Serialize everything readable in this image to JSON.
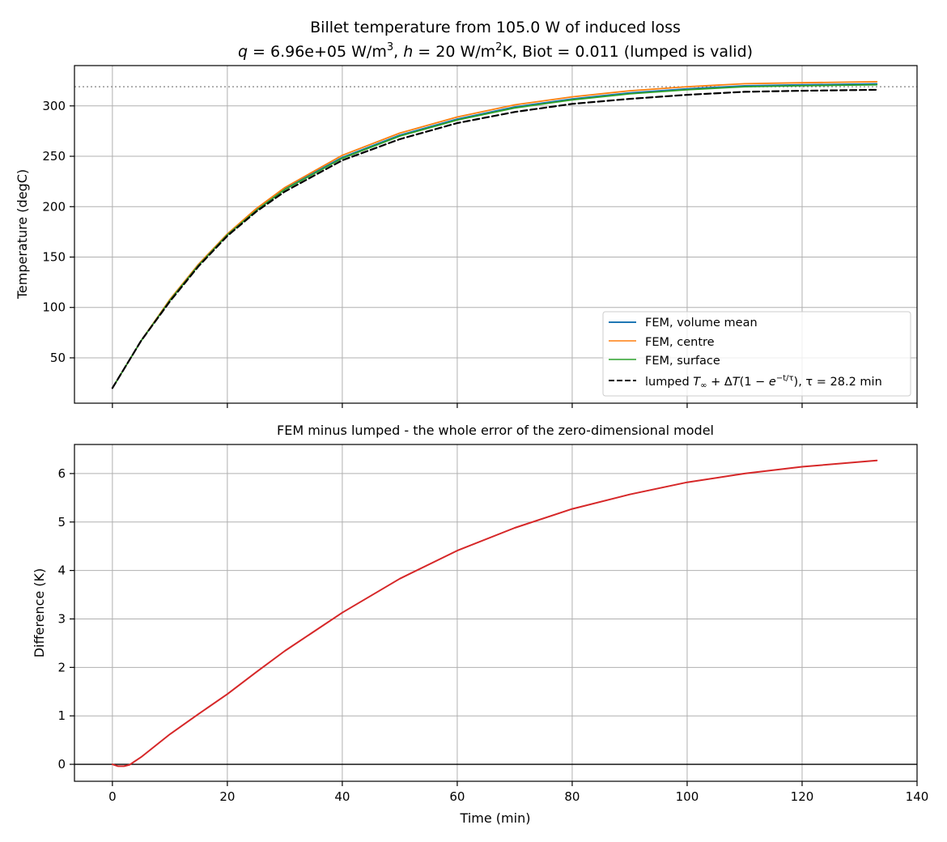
{
  "figure": {
    "title_line1": "Billet temperature from 105.0 W of induced loss",
    "title_line2": {
      "q": "q",
      "q_value": " = 6.96e+05 W/m",
      "q_exp": "3",
      "sep": ", ",
      "h": "h",
      "h_value": " = 20 W/m",
      "h_exp": "2",
      "rest": "K, Biot = 0.011 (lumped is valid)"
    }
  },
  "chart_data": [
    {
      "type": "line",
      "ylabel": "Temperature (degC)",
      "xlim": [
        -6.6,
        140
      ],
      "ylim": [
        5,
        340
      ],
      "x_ticks": [
        0,
        20,
        40,
        60,
        80,
        100,
        120,
        140
      ],
      "x_tick_labels_visible": false,
      "y_ticks": [
        50,
        100,
        150,
        200,
        250,
        300
      ],
      "y_tick_labels": [
        "50",
        "100",
        "150",
        "200",
        "250",
        "300"
      ],
      "grid": true,
      "reference_line": {
        "y": 319,
        "style": "dotted",
        "color": "#808080"
      },
      "legend": {
        "placement": "lower-right",
        "entries": [
          {
            "label": "FEM, volume mean",
            "color": "#1f77b4",
            "style": "solid"
          },
          {
            "label": "FEM, centre",
            "color": "#ff7f0e",
            "style": "solid"
          },
          {
            "label": "FEM, surface",
            "color": "#2ca02c",
            "style": "solid"
          },
          {
            "label_prefix": "lumped ",
            "label_math": "T∞ + ΔT(1 − e^(−t/τ))",
            "label_suffix": ", τ = 28.2 min",
            "color": "#000000",
            "style": "dashed"
          }
        ]
      },
      "series": [
        {
          "name": "FEM, volume mean",
          "color": "#1f77b4",
          "x": [
            0,
            5,
            10,
            15,
            20,
            25,
            30,
            40,
            50,
            60,
            70,
            80,
            90,
            100,
            110,
            120,
            133
          ],
          "y": [
            20,
            67,
            107,
            143,
            172,
            197,
            218,
            249,
            271,
            287,
            299,
            307,
            313,
            317,
            320,
            321,
            322
          ]
        },
        {
          "name": "FEM, centre",
          "color": "#ff7f0e",
          "x": [
            0,
            5,
            10,
            15,
            20,
            25,
            30,
            40,
            50,
            60,
            70,
            80,
            90,
            100,
            110,
            120,
            133
          ],
          "y": [
            20,
            67,
            108,
            143,
            173,
            198,
            219,
            251,
            273,
            289,
            301,
            309,
            315,
            319,
            322,
            323,
            324
          ]
        },
        {
          "name": "FEM, surface",
          "color": "#2ca02c",
          "x": [
            0,
            5,
            10,
            15,
            20,
            25,
            30,
            40,
            50,
            60,
            70,
            80,
            90,
            100,
            110,
            120,
            133
          ],
          "y": [
            20,
            67,
            107,
            142,
            172,
            196,
            217,
            248,
            270,
            286,
            298,
            306,
            312,
            316,
            319,
            320,
            321
          ]
        },
        {
          "name": "lumped",
          "color": "#000000",
          "x": [
            0,
            5,
            10,
            15,
            20,
            25,
            30,
            40,
            50,
            60,
            70,
            80,
            90,
            100,
            110,
            120,
            133
          ],
          "y": [
            20,
            67,
            106,
            141,
            171,
            195,
            215,
            246,
            267,
            283,
            294,
            302,
            307,
            311,
            314,
            315,
            316
          ]
        }
      ]
    },
    {
      "type": "line",
      "title": "FEM minus lumped - the whole error of the zero-dimensional model",
      "xlabel": "Time (min)",
      "ylabel": "Difference (K)",
      "xlim": [
        -6.6,
        140
      ],
      "ylim": [
        -0.35,
        6.6
      ],
      "x_ticks": [
        0,
        20,
        40,
        60,
        80,
        100,
        120,
        140
      ],
      "x_tick_labels": [
        "0",
        "20",
        "40",
        "60",
        "80",
        "100",
        "120",
        "140"
      ],
      "y_ticks": [
        0,
        1,
        2,
        3,
        4,
        5,
        6
      ],
      "y_tick_labels": [
        "0",
        "1",
        "2",
        "3",
        "4",
        "5",
        "6"
      ],
      "grid": true,
      "zero_line": {
        "y": 0,
        "color": "#000000"
      },
      "series": [
        {
          "color": "#d62728",
          "x": [
            0,
            1,
            2,
            3,
            5,
            10,
            15,
            20,
            25,
            30,
            40,
            50,
            60,
            70,
            80,
            90,
            100,
            110,
            120,
            133
          ],
          "y": [
            0,
            -0.04,
            -0.04,
            -0.01,
            0.15,
            0.62,
            1.04,
            1.45,
            1.9,
            2.34,
            3.13,
            3.83,
            4.41,
            4.88,
            5.27,
            5.57,
            5.82,
            6.0,
            6.14,
            6.27
          ]
        }
      ]
    }
  ]
}
